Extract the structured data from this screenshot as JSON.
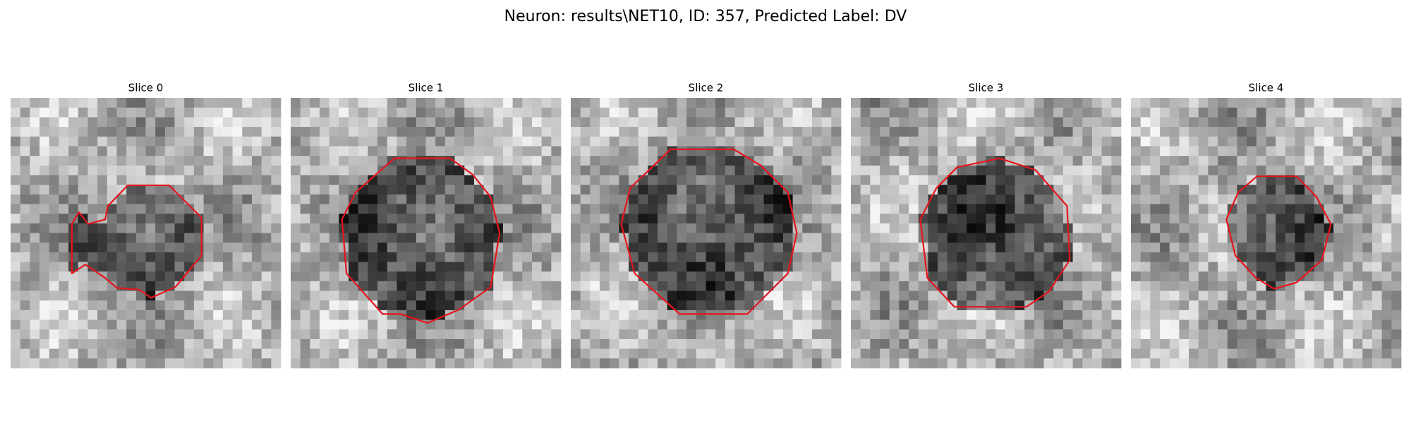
{
  "title": "Neuron: results\\NET10, ID: 357, Predicted Label: DV",
  "panels": [
    {
      "title": "Slice 0"
    },
    {
      "title": "Slice 1"
    },
    {
      "title": "Slice 2"
    },
    {
      "title": "Slice 3"
    },
    {
      "title": "Slice 4"
    }
  ]
}
